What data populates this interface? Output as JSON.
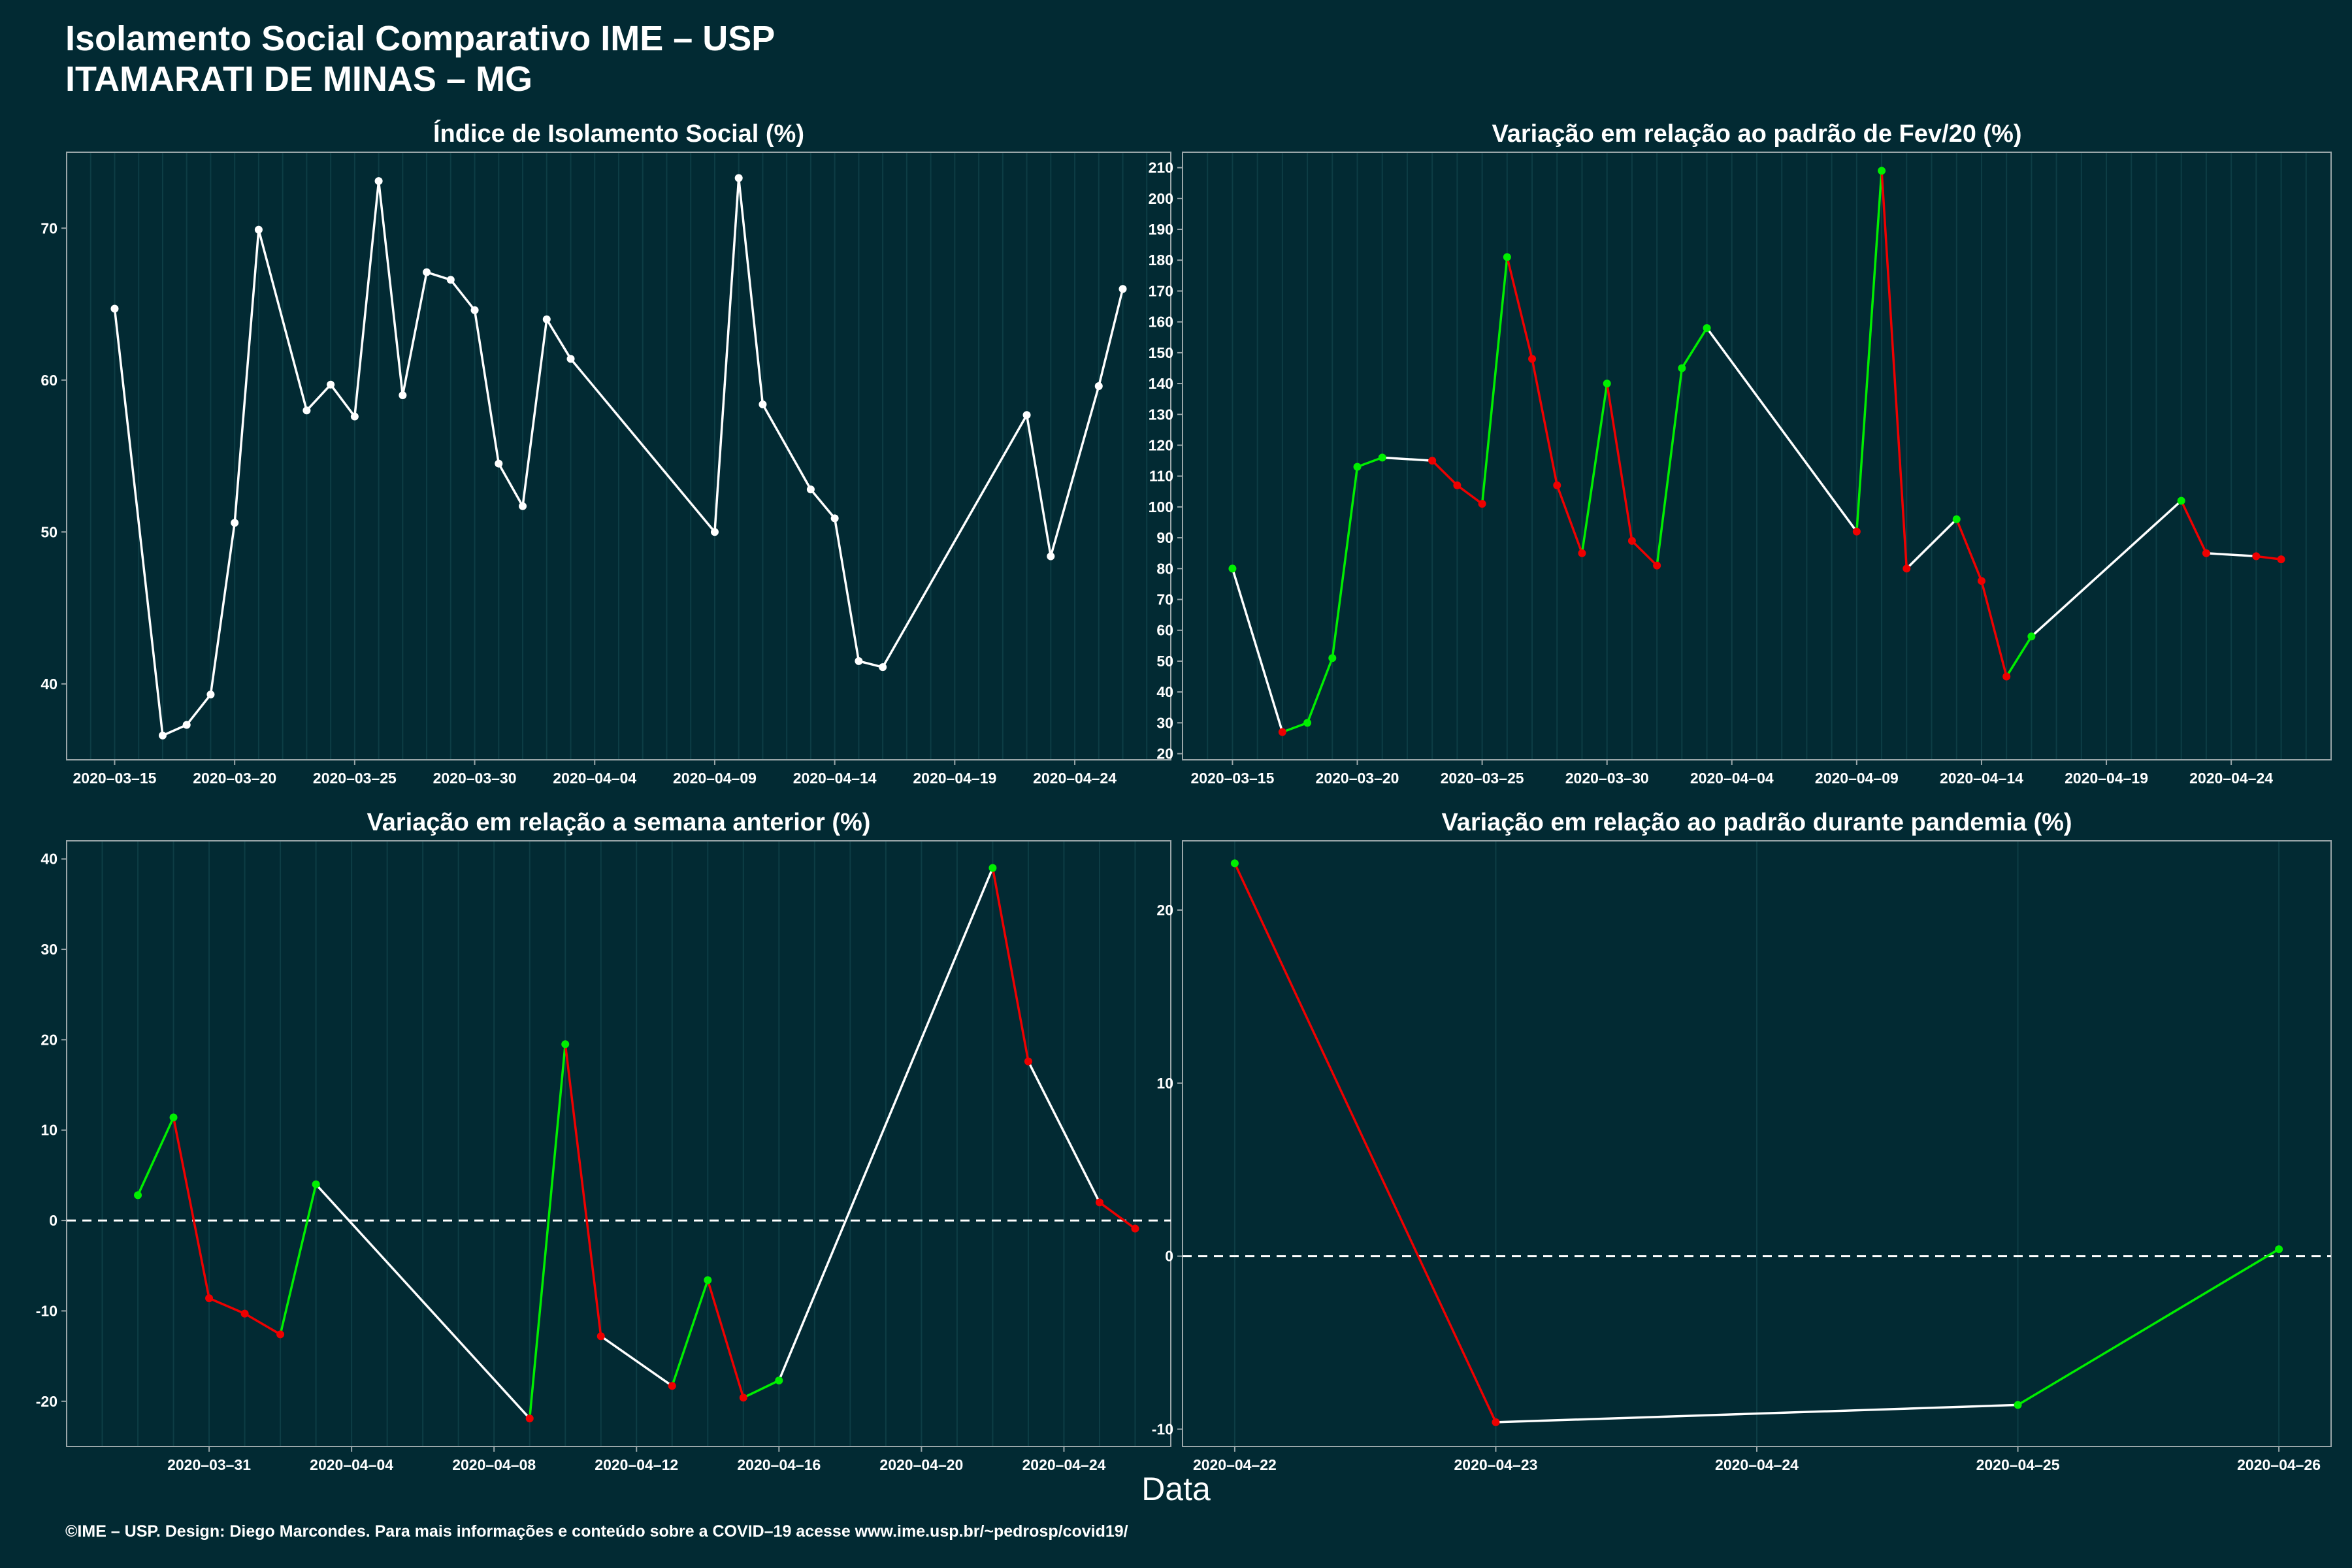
{
  "title": "Isolamento Social Comparativo IME – USP",
  "subtitle": "ITAMARATI DE MINAS – MG",
  "xlabel": "Data",
  "footer": "©IME – USP. Design: Diego Marcondes. Para mais informações e conteúdo sobre a COVID–19 acesse www.ime.usp.br/~pedrosp/covid19/",
  "colors": {
    "background": "#022a33",
    "line": "#ffffff",
    "up": "#00ee00",
    "down": "#ee0000",
    "grid": "#0d3d45"
  },
  "chart_data": [
    {
      "type": "line",
      "title": "Índice de Isolamento Social (%)",
      "x": [
        "2020-03-15",
        "2020-03-17",
        "2020-03-18",
        "2020-03-19",
        "2020-03-20",
        "2020-03-21",
        "2020-03-23",
        "2020-03-24",
        "2020-03-25",
        "2020-03-26",
        "2020-03-27",
        "2020-03-28",
        "2020-03-29",
        "2020-03-30",
        "2020-03-31",
        "2020-04-01",
        "2020-04-02",
        "2020-04-03",
        "2020-04-09",
        "2020-04-10",
        "2020-04-11",
        "2020-04-13",
        "2020-04-14",
        "2020-04-15",
        "2020-04-16",
        "2020-04-22",
        "2020-04-23",
        "2020-04-25",
        "2020-04-26"
      ],
      "values": [
        64.7,
        36.6,
        37.3,
        39.3,
        50.6,
        69.9,
        58.0,
        59.7,
        57.6,
        73.1,
        59.0,
        67.1,
        66.6,
        64.6,
        54.5,
        51.7,
        64.0,
        61.4,
        50.0,
        73.3,
        58.4,
        52.8,
        50.9,
        41.5,
        41.1,
        57.7,
        48.4,
        59.6,
        66.0
      ],
      "ylim": [
        35,
        75
      ],
      "yticks": [
        40,
        50,
        60,
        70
      ],
      "xticks": [
        "2020-03-15",
        "2020-03-20",
        "2020-03-25",
        "2020-03-30",
        "2020-04-04",
        "2020-04-09",
        "2020-04-14",
        "2020-04-19",
        "2020-04-24"
      ],
      "colored": false
    },
    {
      "type": "line",
      "title": "Variação em relação ao padrão de Fev/20 (%)",
      "x": [
        "2020-03-15",
        "2020-03-17",
        "2020-03-18",
        "2020-03-19",
        "2020-03-20",
        "2020-03-21",
        "2020-03-23",
        "2020-03-24",
        "2020-03-25",
        "2020-03-26",
        "2020-03-27",
        "2020-03-28",
        "2020-03-29",
        "2020-03-30",
        "2020-03-31",
        "2020-04-01",
        "2020-04-02",
        "2020-04-03",
        "2020-04-09",
        "2020-04-10",
        "2020-04-11",
        "2020-04-13",
        "2020-04-14",
        "2020-04-15",
        "2020-04-16",
        "2020-04-22",
        "2020-04-23",
        "2020-04-25",
        "2020-04-26"
      ],
      "values": [
        80,
        27,
        30,
        51,
        113,
        116,
        115,
        107,
        101,
        181,
        148,
        107,
        85,
        140,
        89,
        81,
        145,
        158,
        92,
        209,
        80,
        96,
        76,
        45,
        58,
        102,
        85,
        84,
        83
      ],
      "ylim": [
        18,
        215
      ],
      "yticks": [
        20,
        30,
        40,
        50,
        60,
        70,
        80,
        90,
        100,
        110,
        120,
        130,
        140,
        150,
        160,
        170,
        180,
        190,
        200,
        210
      ],
      "xticks": [
        "2020-03-15",
        "2020-03-20",
        "2020-03-25",
        "2020-03-30",
        "2020-04-04",
        "2020-04-09",
        "2020-04-14",
        "2020-04-19",
        "2020-04-24"
      ],
      "colored": true
    },
    {
      "type": "line",
      "title": "Variação em relação a semana anterior (%)",
      "x": [
        "2020-03-29",
        "2020-03-30",
        "2020-03-31",
        "2020-04-01",
        "2020-04-02",
        "2020-04-03",
        "2020-04-09",
        "2020-04-10",
        "2020-04-11",
        "2020-04-13",
        "2020-04-14",
        "2020-04-15",
        "2020-04-16",
        "2020-04-22",
        "2020-04-23",
        "2020-04-25",
        "2020-04-26"
      ],
      "values": [
        2.8,
        11.4,
        -8.6,
        -10.3,
        -12.6,
        4.0,
        -21.9,
        19.5,
        -12.8,
        -18.3,
        -6.6,
        -19.6,
        -17.7,
        39.0,
        17.6,
        2.0,
        -0.9
      ],
      "ylim": [
        -25,
        42
      ],
      "yticks": [
        -20,
        -10,
        0,
        10,
        20,
        30,
        40
      ],
      "xticks": [
        "2020-03-31",
        "2020-04-04",
        "2020-04-08",
        "2020-04-12",
        "2020-04-16",
        "2020-04-20",
        "2020-04-24"
      ],
      "colored": true,
      "zero_line": true
    },
    {
      "type": "line",
      "title": "Variação em relação ao padrão durante pandemia (%)",
      "x": [
        "2020-04-22",
        "2020-04-23",
        "2020-04-25",
        "2020-04-26"
      ],
      "values": [
        22.7,
        -9.6,
        -8.6,
        0.4
      ],
      "ylim": [
        -11,
        24
      ],
      "yticks": [
        -10,
        0,
        10,
        20
      ],
      "xticks": [
        "2020-04-22",
        "2020-04-23",
        "2020-04-24",
        "2020-04-25",
        "2020-04-26"
      ],
      "colored": true,
      "zero_line": true
    }
  ]
}
